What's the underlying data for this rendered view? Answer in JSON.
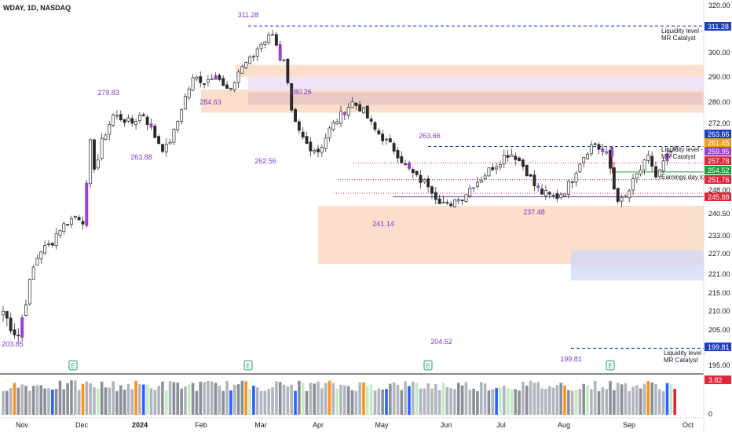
{
  "chart_data": {
    "type": "candlestick",
    "title": "WDAY, 1D, NASDAQ",
    "y_ticks": [
      320.0,
      300.0,
      290.0,
      280.0,
      272.0,
      248.0,
      240.5,
      233.0,
      227.0,
      221.0,
      215.0,
      210.0,
      205.0,
      195.0
    ],
    "x_ticks": [
      "Nov",
      "Dec",
      "2024",
      "Feb",
      "Mar",
      "Apr",
      "May",
      "Jun",
      "Jul",
      "Aug",
      "Sep",
      "Oct"
    ],
    "pivot_labels": [
      {
        "text": "203.85",
        "date_index": 2,
        "price": 203.85
      },
      {
        "text": "279.83",
        "date_index": 30,
        "price": 279.83
      },
      {
        "text": "263.88",
        "date_index": 38,
        "price": 263.88
      },
      {
        "text": "284.63",
        "date_index": 58,
        "price": 284.63
      },
      {
        "text": "311.28",
        "date_index": 69,
        "price": 311.28
      },
      {
        "text": "262.56",
        "date_index": 75,
        "price": 262.56
      },
      {
        "text": "280.26",
        "date_index": 83,
        "price": 280.26
      },
      {
        "text": "263.66",
        "date_index": 118,
        "price": 263.66
      },
      {
        "text": "241.14",
        "date_index": 106,
        "price": 241.14
      },
      {
        "text": "204.52",
        "date_index": 122,
        "price": 204.52
      },
      {
        "text": "237.48",
        "date_index": 148,
        "price": 237.48
      },
      {
        "text": "199.81",
        "date_index": 159,
        "price": 199.81
      }
    ],
    "price_badges": [
      {
        "text": "311.28",
        "price": 311.28,
        "color": "#1d3fbf"
      },
      {
        "text": "263.66",
        "price": 263.66,
        "color": "#1d3fbf"
      },
      {
        "text": "261.45",
        "price": 261.45,
        "color": "#f0a020"
      },
      {
        "text": "259.95",
        "price": 259.95,
        "color": "#9a3fd0"
      },
      {
        "text": "257.78",
        "price": 257.78,
        "color": "#e0263a"
      },
      {
        "text": "254.52",
        "price": 254.52,
        "color": "#1e9e3c"
      },
      {
        "text": "251.76",
        "price": 251.76,
        "color": "#e0263a"
      },
      {
        "text": "245.88",
        "price": 245.88,
        "color": "#e0263a"
      },
      {
        "text": "199.81",
        "price": 199.81,
        "color": "#1d3fbf"
      }
    ],
    "level_notes": [
      {
        "lines": [
          "Liquidity level -",
          "MR Catalyst"
        ],
        "price": 311.28
      },
      {
        "lines": [
          "Liquidity level -",
          "MR Catalyst"
        ],
        "price": 261.0
      },
      {
        "lines": [
          "Earnings day low"
        ],
        "price": 251.76
      },
      {
        "lines": [
          "Liquidity level -",
          "MR Catalyst"
        ],
        "price": 197.8
      }
    ],
    "zones": [
      {
        "from": 0,
        "to": 83,
        "low": 283,
        "high": 293,
        "color": "#fbd9c4"
      },
      {
        "from": 0,
        "to": 83,
        "low": 279,
        "high": 290,
        "color": "#ead8f3"
      },
      {
        "from": 86,
        "to": 170,
        "low": 224,
        "high": 243,
        "color": "#fbd9c4"
      },
      {
        "from": 156,
        "to": 170,
        "low": 219,
        "high": 228,
        "color": "#d6dcf8"
      }
    ],
    "volume_last_value": "3.82",
    "volume_axis_zero": "0",
    "earnings_marker": "E",
    "candles": []
  }
}
